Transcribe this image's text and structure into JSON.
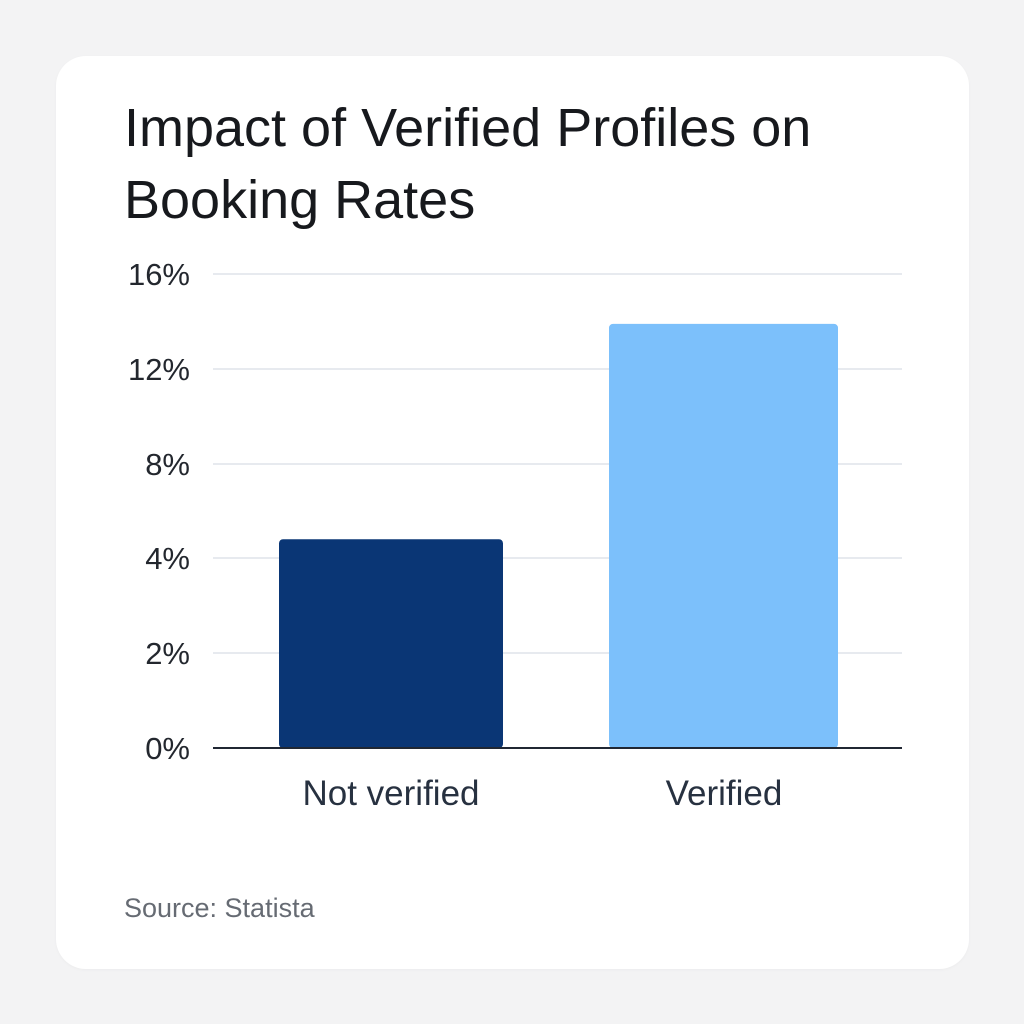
{
  "chart_data": {
    "type": "bar",
    "title": "Impact of Verified Profiles on Booking Rates",
    "categories": [
      "Not verified",
      "Verified"
    ],
    "values": [
      4.8,
      13.9
    ],
    "colors": [
      "#0a3675",
      "#7cc0fb"
    ],
    "y_ticks": [
      "0%",
      "2%",
      "4%",
      "8%",
      "12%",
      "16%"
    ],
    "grid": true,
    "source": "Source: Statista"
  }
}
